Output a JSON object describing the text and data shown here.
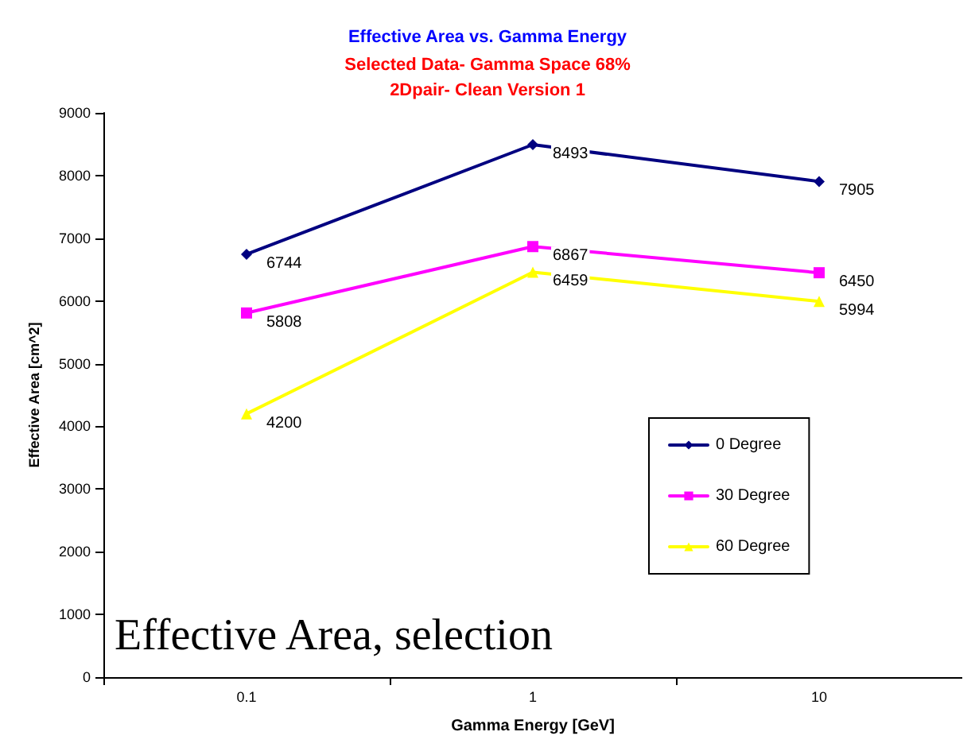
{
  "chart_data": {
    "type": "line",
    "title": "Effective Area vs. Gamma Energy",
    "subtitle": "Selected Data- Gamma Space 68%\n2Dpair- Clean Version 1",
    "xlabel": "Gamma Energy [GeV]",
    "ylabel": "Effective Area [cm^2]",
    "categories": [
      "0.1",
      "1",
      "10"
    ],
    "series": [
      {
        "name": "0 Degree",
        "color": "#000080",
        "marker": "diamond",
        "values": [
          6744,
          8493,
          7905
        ]
      },
      {
        "name": "30 Degree",
        "color": "#ff00ff",
        "marker": "square",
        "values": [
          5808,
          6867,
          6450
        ]
      },
      {
        "name": "60 Degree",
        "color": "#ffff00",
        "marker": "triangle",
        "values": [
          4200,
          6459,
          5994
        ]
      }
    ],
    "ylim": [
      0,
      9000
    ],
    "yticks": [
      0,
      1000,
      2000,
      3000,
      4000,
      5000,
      6000,
      7000,
      8000,
      9000
    ],
    "data_labels": true,
    "grid": false,
    "legend": "right",
    "line_style": "solid",
    "annotations": [
      "Effective Area, selection"
    ]
  }
}
